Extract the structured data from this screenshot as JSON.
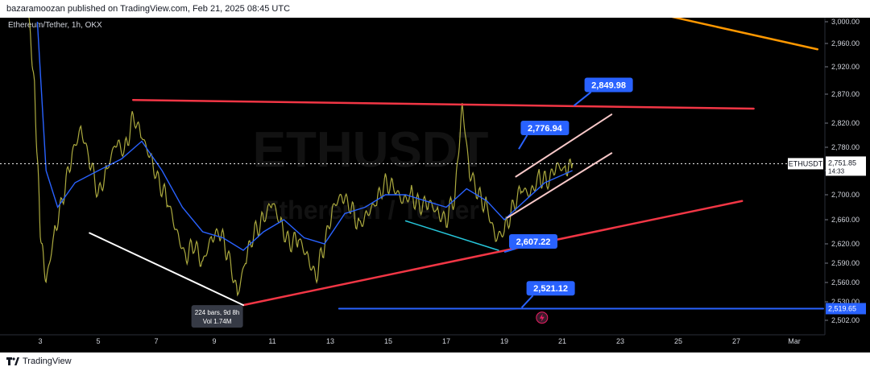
{
  "header": {
    "publisher": "bazaramoozan published on TradingView.com, Feb 21, 2025 08:45 UTC"
  },
  "footer": {
    "brand": "TradingView"
  },
  "colors": {
    "background": "#000000",
    "price_line": "#b5b342",
    "ma_line": "#2962ff",
    "resistance": "#f23645",
    "support_rising": "#f23645",
    "orange_trend": "#ff9800",
    "channel": "#f8c8c8",
    "white_trend": "#ffffff",
    "cyan_trend": "#26c6da",
    "horizontal": "#2962ff",
    "badge": "#2962ff"
  },
  "chart_data": {
    "type": "line",
    "title": "Ethereum/Tether, 1h, OKX",
    "watermark_symbol": "ETHUSDT",
    "watermark_name": "Ethereum / Tether",
    "symbol_tag": "ETHUSDT",
    "current_price": "2,751.85",
    "countdown": "14:33",
    "x_ticks": [
      {
        "day": 3,
        "label": "3"
      },
      {
        "day": 5,
        "label": "5"
      },
      {
        "day": 7,
        "label": "7"
      },
      {
        "day": 9,
        "label": "9"
      },
      {
        "day": 11,
        "label": "11"
      },
      {
        "day": 13,
        "label": "13"
      },
      {
        "day": 15,
        "label": "15"
      },
      {
        "day": 17,
        "label": "17"
      },
      {
        "day": 19,
        "label": "19"
      },
      {
        "day": 21,
        "label": "21"
      },
      {
        "day": 23,
        "label": "23"
      },
      {
        "day": 25,
        "label": "25"
      },
      {
        "day": 27,
        "label": "27"
      },
      {
        "day": 29,
        "label": "Mar"
      }
    ],
    "y_ticks": [
      {
        "value": 3000,
        "label": "3,000.00"
      },
      {
        "value": 2960,
        "label": "2,960.00"
      },
      {
        "value": 2920,
        "label": "2,920.00"
      },
      {
        "value": 2870,
        "label": "2,870.00"
      },
      {
        "value": 2820,
        "label": "2,820.00"
      },
      {
        "value": 2780,
        "label": "2,780.00"
      },
      {
        "value": 2740,
        "label": "2,740.00"
      },
      {
        "value": 2700,
        "label": "2,700.00"
      },
      {
        "value": 2660,
        "label": "2,660.00"
      },
      {
        "value": 2620,
        "label": "2,620.00"
      },
      {
        "value": 2590,
        "label": "2,590.00"
      },
      {
        "value": 2560,
        "label": "2,560.00"
      },
      {
        "value": 2530,
        "label": "2,530.00"
      },
      {
        "value": 2502,
        "label": "2,502.00"
      }
    ],
    "horizontal_level": {
      "value": 2519.65,
      "label": "2,519.65"
    },
    "price_series": [
      {
        "day": 2.6,
        "price": 3010
      },
      {
        "day": 2.8,
        "price": 2880
      },
      {
        "day": 3.0,
        "price": 2640
      },
      {
        "day": 3.2,
        "price": 2560
      },
      {
        "day": 3.5,
        "price": 2640
      },
      {
        "day": 3.8,
        "price": 2700
      },
      {
        "day": 4.1,
        "price": 2770
      },
      {
        "day": 4.4,
        "price": 2810
      },
      {
        "day": 4.7,
        "price": 2760
      },
      {
        "day": 5.0,
        "price": 2700
      },
      {
        "day": 5.3,
        "price": 2740
      },
      {
        "day": 5.6,
        "price": 2790
      },
      {
        "day": 5.9,
        "price": 2770
      },
      {
        "day": 6.2,
        "price": 2830
      },
      {
        "day": 6.5,
        "price": 2800
      },
      {
        "day": 6.8,
        "price": 2760
      },
      {
        "day": 7.1,
        "price": 2720
      },
      {
        "day": 7.4,
        "price": 2690
      },
      {
        "day": 7.7,
        "price": 2640
      },
      {
        "day": 8.0,
        "price": 2600
      },
      {
        "day": 8.3,
        "price": 2620
      },
      {
        "day": 8.6,
        "price": 2590
      },
      {
        "day": 8.9,
        "price": 2630
      },
      {
        "day": 9.2,
        "price": 2640
      },
      {
        "day": 9.5,
        "price": 2600
      },
      {
        "day": 9.8,
        "price": 2540
      },
      {
        "day": 10.1,
        "price": 2600
      },
      {
        "day": 10.4,
        "price": 2640
      },
      {
        "day": 10.7,
        "price": 2660
      },
      {
        "day": 11.0,
        "price": 2690
      },
      {
        "day": 11.3,
        "price": 2650
      },
      {
        "day": 11.6,
        "price": 2620
      },
      {
        "day": 11.9,
        "price": 2630
      },
      {
        "day": 12.2,
        "price": 2600
      },
      {
        "day": 12.5,
        "price": 2570
      },
      {
        "day": 12.8,
        "price": 2620
      },
      {
        "day": 13.1,
        "price": 2680
      },
      {
        "day": 13.4,
        "price": 2700
      },
      {
        "day": 13.7,
        "price": 2680
      },
      {
        "day": 14.0,
        "price": 2650
      },
      {
        "day": 14.3,
        "price": 2670
      },
      {
        "day": 14.6,
        "price": 2690
      },
      {
        "day": 14.9,
        "price": 2720
      },
      {
        "day": 15.2,
        "price": 2710
      },
      {
        "day": 15.5,
        "price": 2690
      },
      {
        "day": 15.8,
        "price": 2700
      },
      {
        "day": 16.1,
        "price": 2680
      },
      {
        "day": 16.4,
        "price": 2690
      },
      {
        "day": 16.7,
        "price": 2670
      },
      {
        "day": 17.0,
        "price": 2660
      },
      {
        "day": 17.3,
        "price": 2700
      },
      {
        "day": 17.55,
        "price": 2850
      },
      {
        "day": 17.8,
        "price": 2740
      },
      {
        "day": 18.1,
        "price": 2700
      },
      {
        "day": 18.4,
        "price": 2680
      },
      {
        "day": 18.7,
        "price": 2630
      },
      {
        "day": 19.0,
        "price": 2640
      },
      {
        "day": 19.3,
        "price": 2680
      },
      {
        "day": 19.6,
        "price": 2710
      },
      {
        "day": 19.9,
        "price": 2700
      },
      {
        "day": 20.2,
        "price": 2730
      },
      {
        "day": 20.5,
        "price": 2720
      },
      {
        "day": 20.8,
        "price": 2750
      },
      {
        "day": 21.1,
        "price": 2740
      },
      {
        "day": 21.35,
        "price": 2752
      }
    ],
    "moving_average": [
      {
        "day": 2.9,
        "price": 3000
      },
      {
        "day": 3.2,
        "price": 2740
      },
      {
        "day": 3.6,
        "price": 2680
      },
      {
        "day": 4.2,
        "price": 2720
      },
      {
        "day": 5.0,
        "price": 2740
      },
      {
        "day": 5.8,
        "price": 2760
      },
      {
        "day": 6.5,
        "price": 2790
      },
      {
        "day": 7.2,
        "price": 2740
      },
      {
        "day": 7.9,
        "price": 2680
      },
      {
        "day": 8.6,
        "price": 2640
      },
      {
        "day": 9.3,
        "price": 2630
      },
      {
        "day": 10.0,
        "price": 2610
      },
      {
        "day": 10.7,
        "price": 2640
      },
      {
        "day": 11.4,
        "price": 2660
      },
      {
        "day": 12.1,
        "price": 2630
      },
      {
        "day": 12.8,
        "price": 2620
      },
      {
        "day": 13.5,
        "price": 2670
      },
      {
        "day": 14.2,
        "price": 2680
      },
      {
        "day": 14.9,
        "price": 2700
      },
      {
        "day": 15.6,
        "price": 2700
      },
      {
        "day": 16.3,
        "price": 2690
      },
      {
        "day": 17.0,
        "price": 2680
      },
      {
        "day": 17.7,
        "price": 2710
      },
      {
        "day": 18.4,
        "price": 2690
      },
      {
        "day": 19.0,
        "price": 2660
      },
      {
        "day": 19.7,
        "price": 2690
      },
      {
        "day": 20.4,
        "price": 2720
      },
      {
        "day": 21.35,
        "price": 2740
      }
    ],
    "trendlines": [
      {
        "name": "resistance",
        "color": "#f23645",
        "width": 2.5,
        "points": [
          {
            "day": 6.2,
            "price": 2860
          },
          {
            "day": 27.6,
            "price": 2845
          }
        ]
      },
      {
        "name": "support",
        "color": "#f23645",
        "width": 2.5,
        "points": [
          {
            "day": 10.0,
            "price": 2525
          },
          {
            "day": 27.2,
            "price": 2690
          }
        ]
      },
      {
        "name": "orange",
        "color": "#ff9800",
        "width": 2.5,
        "points": [
          {
            "day": 24.7,
            "price": 3010
          },
          {
            "day": 29.8,
            "price": 2950
          }
        ]
      },
      {
        "name": "white",
        "color": "#ffffff",
        "width": 2,
        "points": [
          {
            "day": 4.7,
            "price": 2638
          },
          {
            "day": 10.0,
            "price": 2525
          }
        ]
      },
      {
        "name": "cyan",
        "color": "#26c6da",
        "width": 1.5,
        "points": [
          {
            "day": 15.6,
            "price": 2658
          },
          {
            "day": 18.8,
            "price": 2610
          }
        ]
      },
      {
        "name": "channel-upper",
        "color": "#f8c8c8",
        "width": 2,
        "points": [
          {
            "day": 19.4,
            "price": 2730
          },
          {
            "day": 22.7,
            "price": 2835
          }
        ]
      },
      {
        "name": "channel-lower",
        "color": "#f8c8c8",
        "width": 2,
        "points": [
          {
            "day": 19.1,
            "price": 2663
          },
          {
            "day": 22.7,
            "price": 2770
          }
        ]
      },
      {
        "name": "blue-level",
        "color": "#2962ff",
        "width": 2,
        "points": [
          {
            "day": 13.3,
            "price": 2519.65
          },
          {
            "day": 30.0,
            "price": 2519.65
          }
        ]
      }
    ],
    "annotations": [
      {
        "label": "2,849.98",
        "day": 21.4,
        "price": 2849.98,
        "badge_day": 22.6,
        "badge_price": 2887
      },
      {
        "label": "2,776.94",
        "day": 19.5,
        "price": 2776.94,
        "badge_day": 20.4,
        "badge_price": 2812
      },
      {
        "label": "2,607.22",
        "day": 19.0,
        "price": 2607.22,
        "badge_day": 20.0,
        "badge_price": 2624
      },
      {
        "label": "2,521.12",
        "day": 19.6,
        "price": 2521.12,
        "badge_day": 20.6,
        "badge_price": 2551
      }
    ],
    "measure_tooltip": {
      "line1": "224 bars, 9d 8h",
      "line2": "Vol 1.74M",
      "day": 9.1,
      "price": 2508
    },
    "lightning_marker": {
      "day": 20.3,
      "price": 2506
    }
  }
}
